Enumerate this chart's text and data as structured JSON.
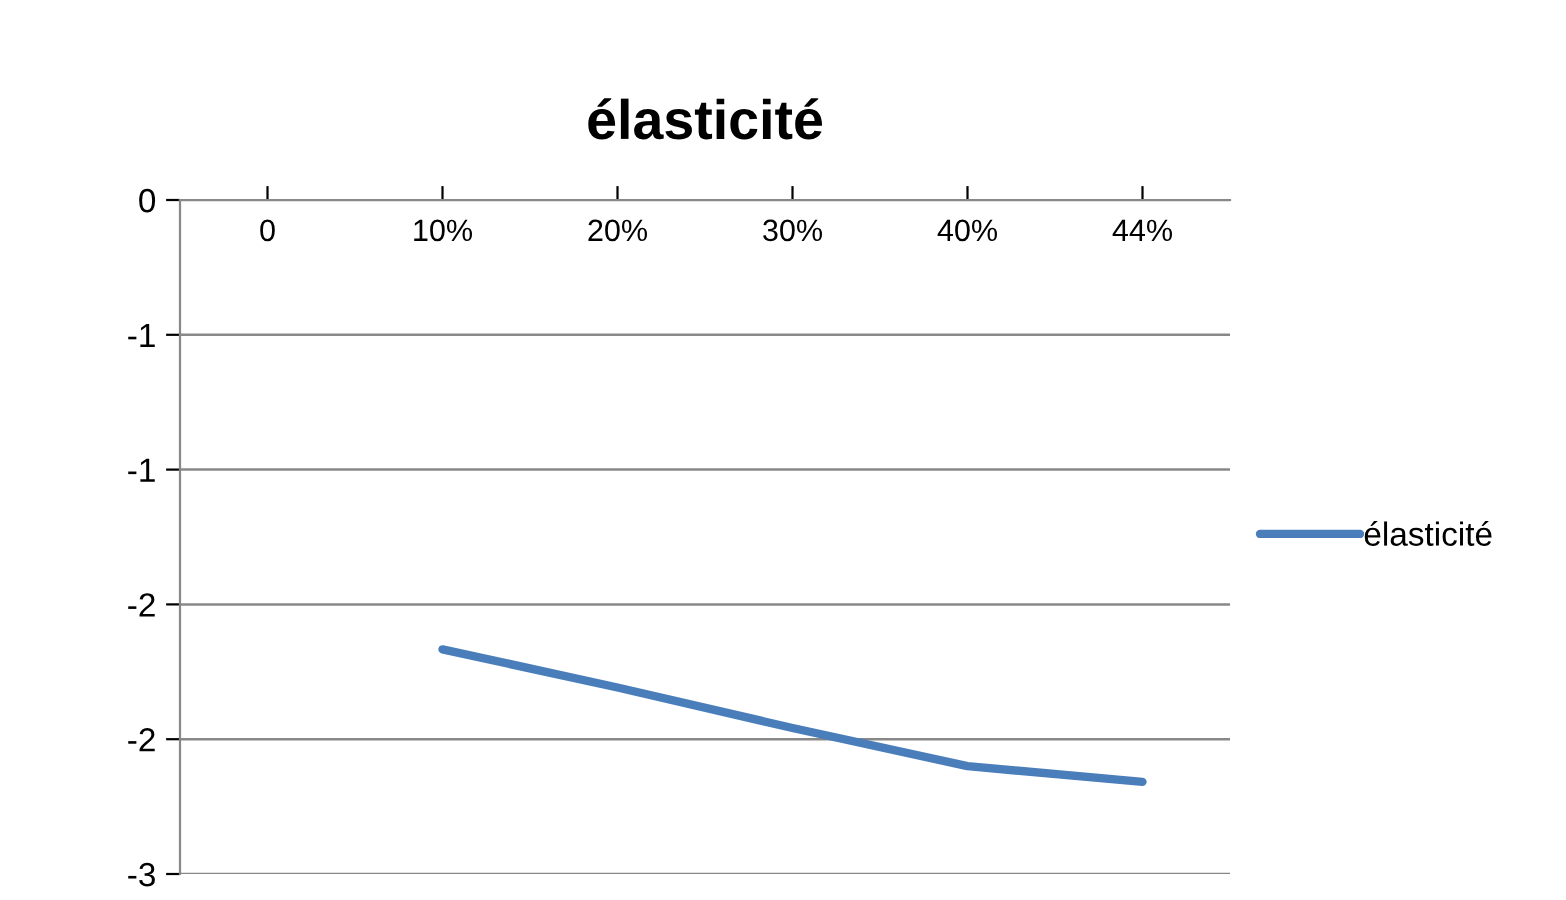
{
  "chart_data": {
    "type": "line",
    "title": "élasticité",
    "categories": [
      "0",
      "10%",
      "20%",
      "30%",
      "40%",
      "44%"
    ],
    "series": [
      {
        "name": "élasticité",
        "color": "#4a7ebb",
        "values": [
          null,
          -2.0,
          -2.17,
          -2.35,
          -2.52,
          -2.59
        ]
      }
    ],
    "ylim": [
      -3,
      0
    ],
    "yticks": [
      {
        "value": 0,
        "label": "0"
      },
      {
        "value": -0.6,
        "label": "-1"
      },
      {
        "value": -1.2,
        "label": "-1"
      },
      {
        "value": -1.8,
        "label": "-2"
      },
      {
        "value": -2.4,
        "label": "-2"
      },
      {
        "value": -3,
        "label": "-3"
      }
    ],
    "grid": "y",
    "legend": "right",
    "marker": "none",
    "line_style": "solid"
  }
}
